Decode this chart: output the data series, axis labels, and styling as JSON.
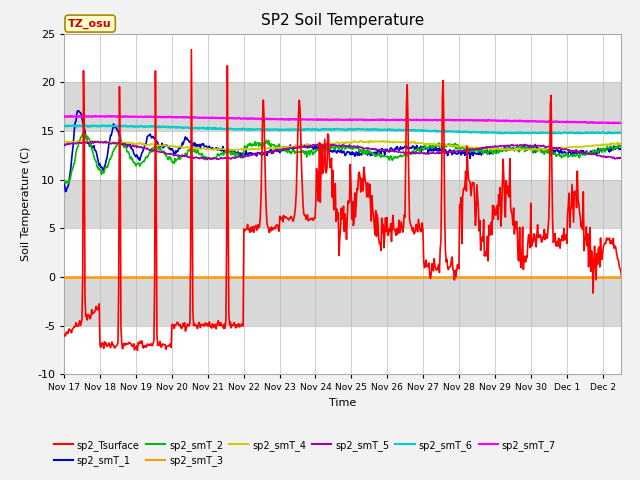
{
  "title": "SP2 Soil Temperature",
  "ylabel": "Soil Temperature (C)",
  "xlabel": "Time",
  "tz_label": "TZ_osu",
  "ylim": [
    -10,
    25
  ],
  "yticks": [
    -10,
    -5,
    0,
    5,
    10,
    15,
    20,
    25
  ],
  "x_tick_labels": [
    "Nov 17",
    "Nov 18",
    "Nov 19",
    "Nov 20",
    "Nov 21",
    "Nov 22",
    "Nov 23",
    "Nov 24",
    "Nov 25",
    "Nov 26",
    "Nov 27",
    "Nov 28",
    "Nov 29",
    "Nov 30",
    "Dec 1",
    "Dec 2"
  ],
  "series_colors": {
    "sp2_Tsurface": "#FF0000",
    "sp2_smT_1": "#0000CC",
    "sp2_smT_2": "#00BB00",
    "sp2_smT_3": "#FF9900",
    "sp2_smT_4": "#CCCC00",
    "sp2_smT_5": "#9900AA",
    "sp2_smT_6": "#00CCCC",
    "sp2_smT_7": "#FF00FF"
  },
  "fig_bg": "#F0F0F0",
  "plot_bg": "#E0E0E0",
  "band_colors": [
    "#FFFFFF",
    "#E0E0E0"
  ]
}
